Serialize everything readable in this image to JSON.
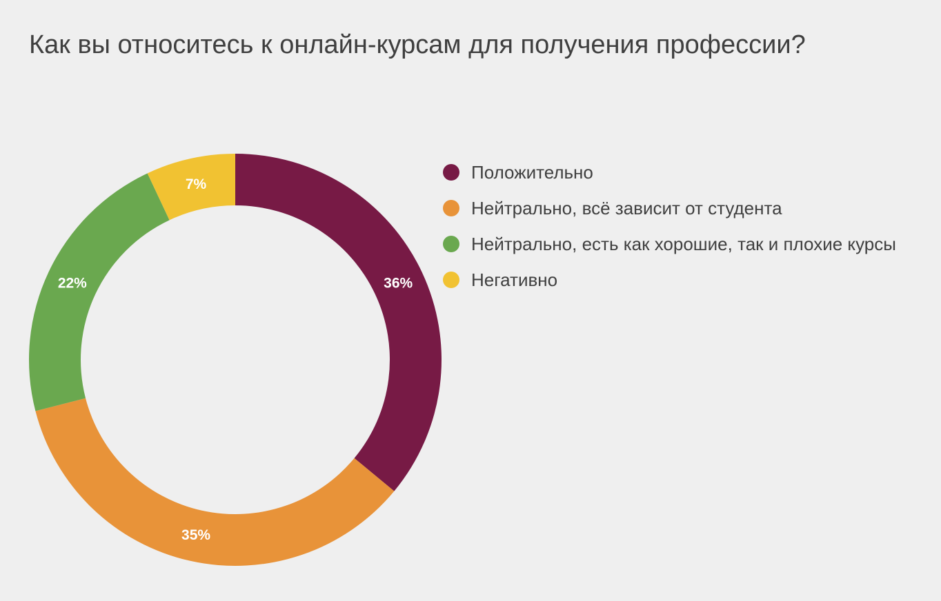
{
  "chart_data": {
    "type": "pie",
    "style": "donut",
    "title": "Как вы относитесь к онлайн-курсам для получения профессии?",
    "legend_position": "right",
    "slices": [
      {
        "label": "Положительно",
        "value": 36,
        "display": "36%",
        "color": "#771a45"
      },
      {
        "label": "Нейтрально, всё зависит от студента",
        "value": 35,
        "display": "35%",
        "color": "#e89339"
      },
      {
        "label": "Нейтрально, есть как хорошие, так и плохие курсы",
        "value": 22,
        "display": "22%",
        "color": "#6aa84f"
      },
      {
        "label": "Негативно",
        "value": 7,
        "display": "7%",
        "color": "#f1c232"
      }
    ]
  }
}
